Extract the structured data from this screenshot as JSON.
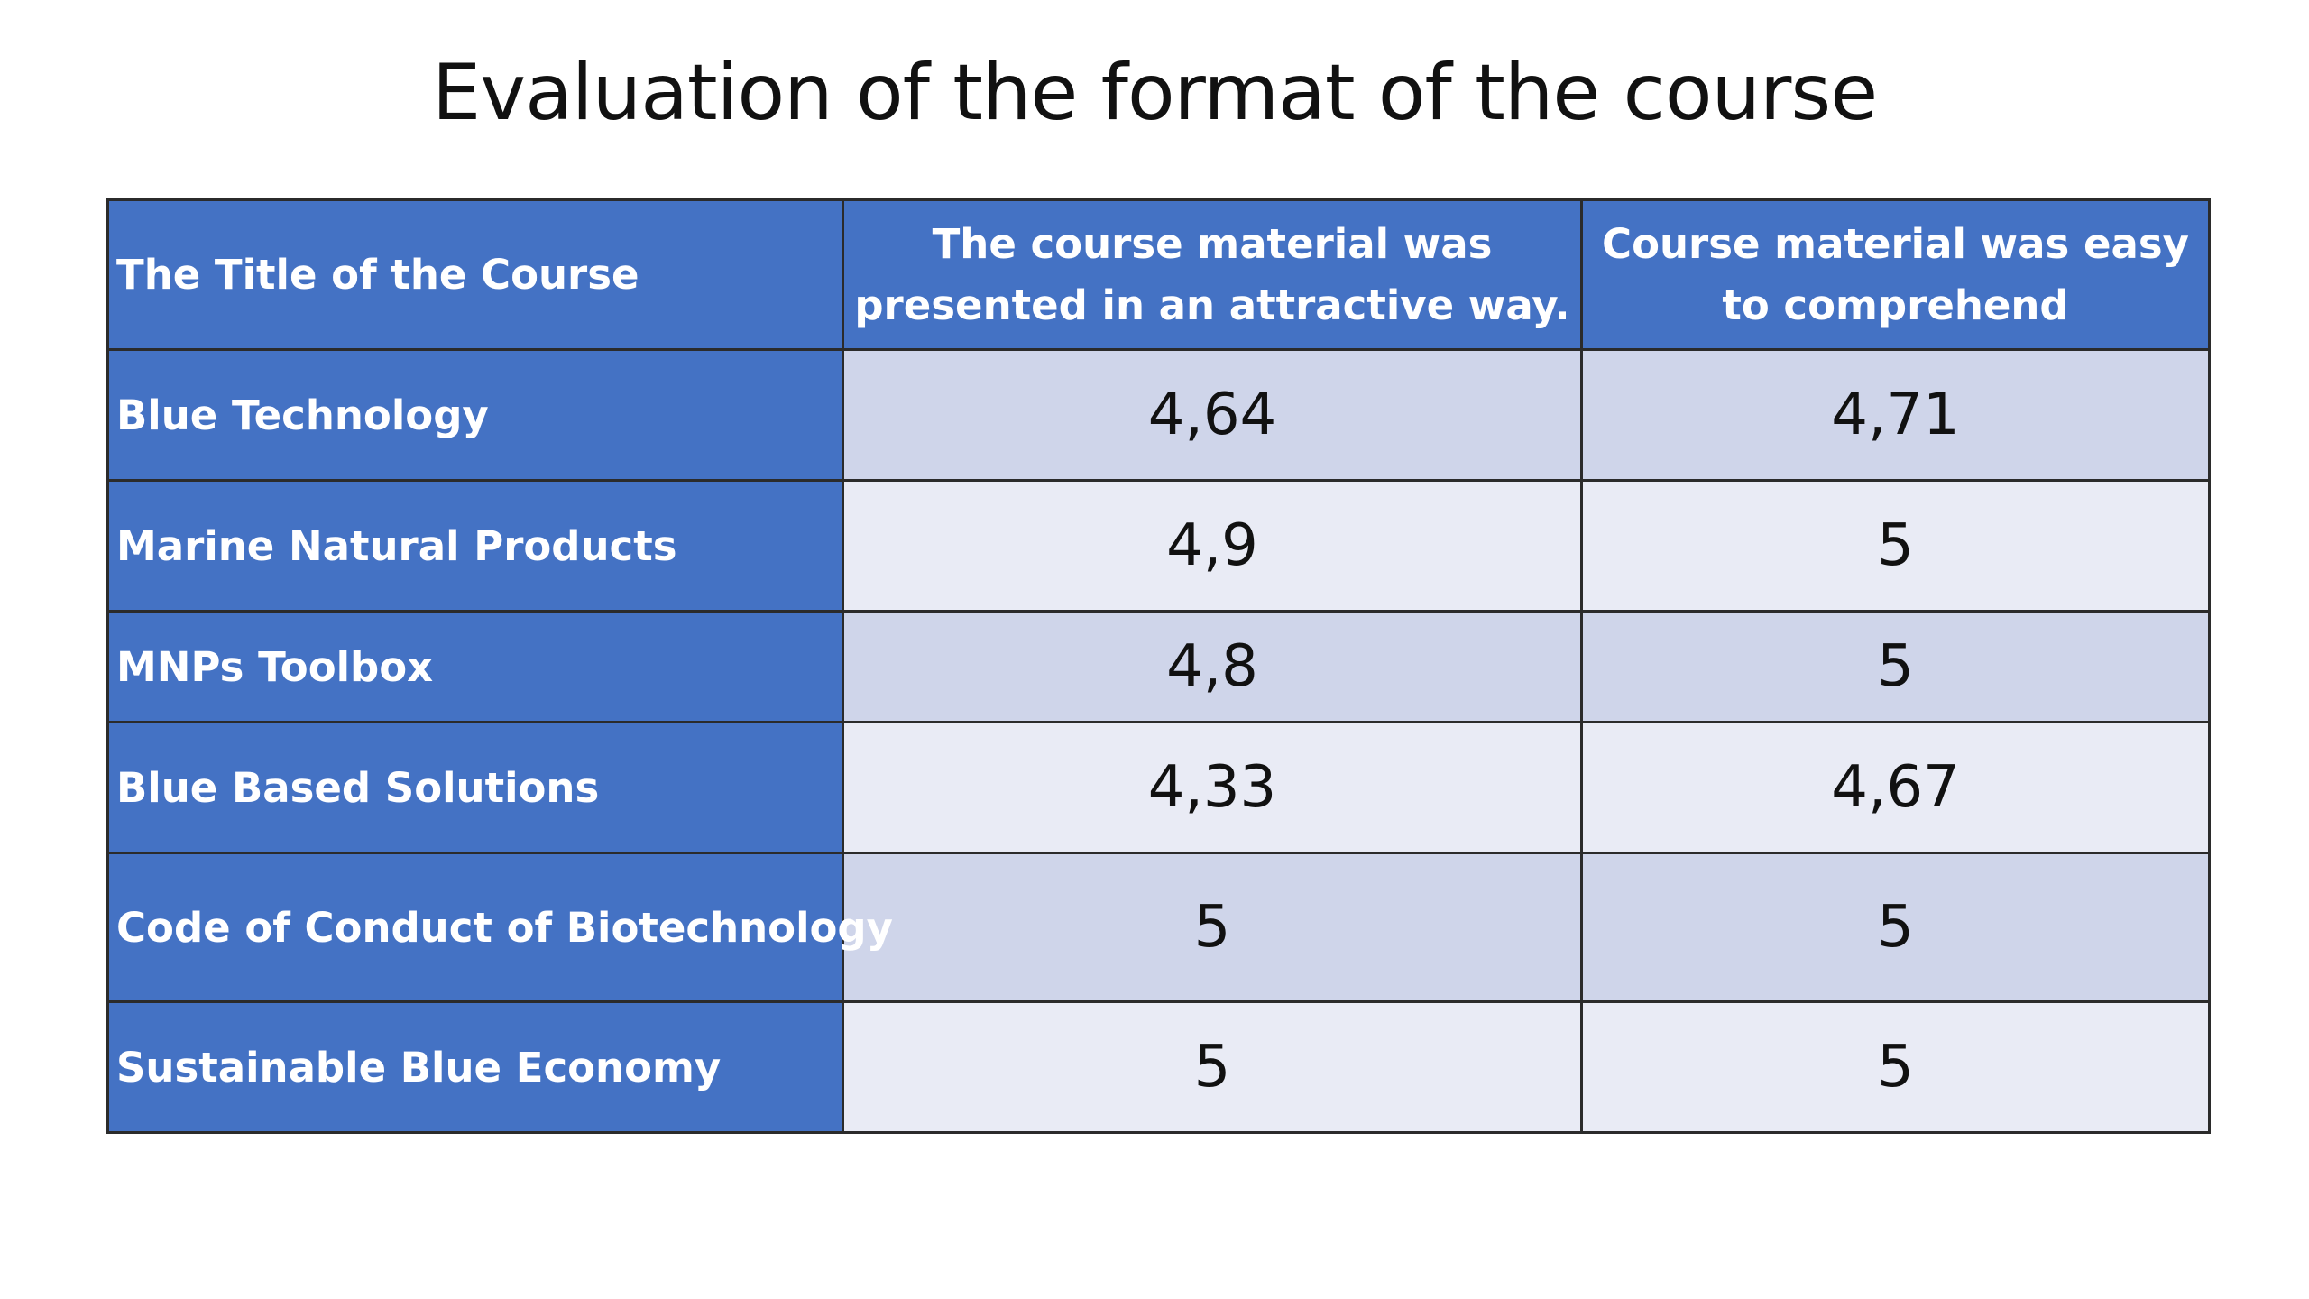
{
  "slide": {
    "title": "Evaluation of the format of the course"
  },
  "table": {
    "headers": [
      "The Title of the Course",
      "The course material was presented in an attractive way.",
      "Course material was easy to comprehend"
    ],
    "rows": [
      {
        "course": "Blue Technology",
        "attractive": "4,64",
        "comprehend": "4,71"
      },
      {
        "course": "Marine Natural Products",
        "attractive": "4,9",
        "comprehend": "5"
      },
      {
        "course": "MNPs Toolbox",
        "attractive": "4,8",
        "comprehend": "5"
      },
      {
        "course": "Blue Based Solutions",
        "attractive": "4,33",
        "comprehend": "4,67"
      },
      {
        "course": "Code of Conduct of Biotechnology",
        "attractive": "5",
        "comprehend": "5"
      },
      {
        "course": "Sustainable Blue Economy",
        "attractive": "5",
        "comprehend": "5"
      }
    ]
  },
  "colors": {
    "header_bg": "#4472C4",
    "row_dark": "#CFD5EA",
    "row_light": "#E9EBF5"
  }
}
